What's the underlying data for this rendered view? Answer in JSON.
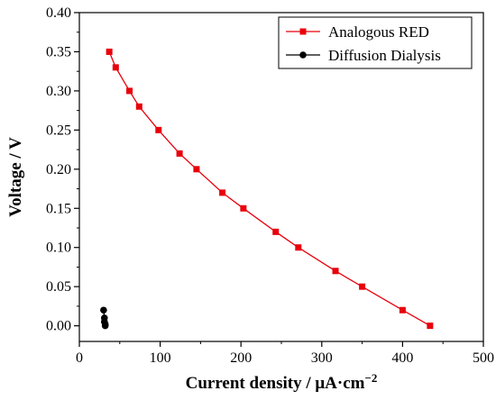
{
  "chart_data": {
    "type": "line",
    "xlabel": "Current density / μA·cm",
    "xlabel_exponent": "−2",
    "ylabel": "Voltage / V",
    "xlim": [
      0,
      500
    ],
    "ylim": [
      -0.02,
      0.4
    ],
    "x_ticks": [
      0,
      100,
      200,
      300,
      400,
      500
    ],
    "x_tick_labels": [
      "0",
      "100",
      "200",
      "300",
      "400",
      "500"
    ],
    "y_ticks": [
      0.0,
      0.05,
      0.1,
      0.15,
      0.2,
      0.25,
      0.3,
      0.35,
      0.4
    ],
    "y_tick_labels": [
      "0.00",
      "0.05",
      "0.10",
      "0.15",
      "0.20",
      "0.25",
      "0.30",
      "0.35",
      "0.40"
    ],
    "grid": false,
    "legend_position": "top-right",
    "series": [
      {
        "name": "Analogous RED",
        "color": "#e8000b",
        "marker": "square",
        "line": true,
        "x": [
          37,
          45,
          62,
          74,
          98,
          124,
          145,
          177,
          203,
          243,
          271,
          317,
          350,
          400,
          434
        ],
        "y": [
          0.35,
          0.33,
          0.3,
          0.28,
          0.25,
          0.22,
          0.2,
          0.17,
          0.15,
          0.12,
          0.1,
          0.07,
          0.05,
          0.02,
          0.0
        ]
      },
      {
        "name": "Diffusion Dialysis",
        "color": "#000000",
        "marker": "circle",
        "line": true,
        "x": [
          30,
          31,
          31,
          32,
          32
        ],
        "y": [
          0.02,
          0.01,
          0.005,
          0.002,
          0.0
        ]
      }
    ]
  }
}
